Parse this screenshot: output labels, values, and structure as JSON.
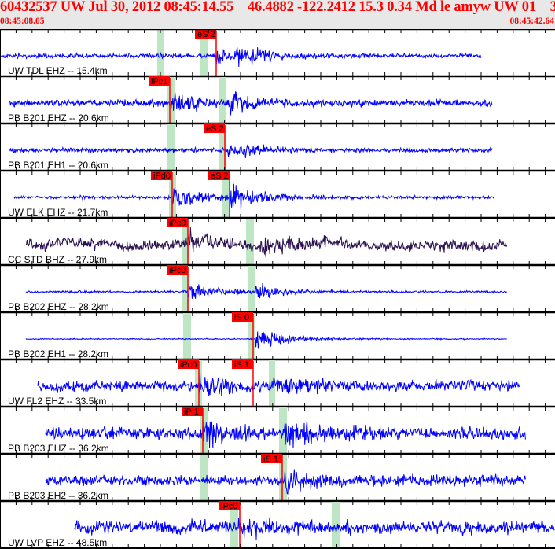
{
  "header": {
    "title": "60432537 UW Jul 30, 2012 08:45:14.55    46.4882 -122.2412 15.3 0.34 Md le amyw UW 01    3",
    "start_time": "08:45:08.05",
    "end_time": "08:45:42.64"
  },
  "colors": {
    "trace": "#0000ff",
    "broadband_trace": "#2a1050",
    "pick": "#ff0000",
    "window": "#bfe6c4",
    "header_bg": "#e8e8e8",
    "title": "#ff0000"
  },
  "traces": [
    {
      "label": "UW TDL EHZ -- 15.4km",
      "picks": [
        "eS 2"
      ]
    },
    {
      "label": "PB B201 EHZ -- 20.6km",
      "picks": [
        "iPc1"
      ]
    },
    {
      "label": "PB B201 EH1 -- 20.6km",
      "picks": [
        "eS 2"
      ]
    },
    {
      "label": "UW ELK EHZ -- 21.7km",
      "picks": [
        "iPd0",
        "eS 2"
      ]
    },
    {
      "label": "CC STD BHZ -- 27.9km",
      "picks": [
        "iPc0"
      ]
    },
    {
      "label": "PB B202 EHZ -- 28.2km",
      "picks": [
        "iPc0"
      ]
    },
    {
      "label": "PB B202 EH1 -- 28.2km",
      "picks": [
        "iS 0"
      ]
    },
    {
      "label": "UW FL2 EHZ -- 33.5km",
      "picks": [
        "iPc0",
        "iS 1"
      ]
    },
    {
      "label": "PB B203 EHZ -- 36.2km",
      "picks": [
        "iP 1"
      ]
    },
    {
      "label": "PB B203 EH2 -- 36.2km",
      "picks": [
        "iS 1"
      ]
    },
    {
      "label": "UW LVP EHZ -- 48.5km",
      "picks": [
        "iPc0"
      ]
    }
  ]
}
